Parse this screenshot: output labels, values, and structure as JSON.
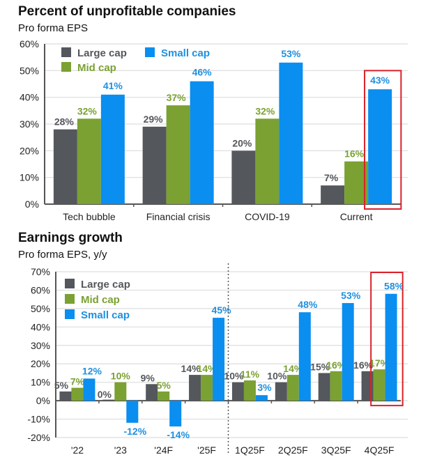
{
  "colors": {
    "large_cap": "#54575c",
    "mid_cap": "#7aa132",
    "small_cap": "#0a8ef0",
    "highlight_box": "#d9222a",
    "axis": "#555555",
    "grid": "#dddddd",
    "divider": "#555555",
    "large_label": "#54575c",
    "mid_label": "#7aa132",
    "small_label": "#1e90e0"
  },
  "chart_data": [
    {
      "type": "bar",
      "title": "Percent of unprofitable companies",
      "subtitle": "Pro forma EPS",
      "xlabel": "",
      "ylabel": "",
      "categories": [
        "Tech bubble",
        "Financial crisis",
        "COVID-19",
        "Current"
      ],
      "series": [
        {
          "name": "Large cap",
          "values": [
            28,
            29,
            20,
            7
          ]
        },
        {
          "name": "Mid cap",
          "values": [
            32,
            37,
            32,
            16
          ]
        },
        {
          "name": "Small cap",
          "values": [
            41,
            46,
            53,
            43
          ]
        }
      ],
      "data_labels": {
        "Large cap": [
          "28%",
          "29%",
          "20%",
          "7%"
        ],
        "Mid cap": [
          "32%",
          "37%",
          "32%",
          "16%"
        ],
        "Small cap": [
          "41%",
          "46%",
          "53%",
          "43%"
        ]
      },
      "ylim": [
        0,
        60
      ],
      "yticks": [
        "0%",
        "10%",
        "20%",
        "30%",
        "40%",
        "50%",
        "60%"
      ],
      "grid": true,
      "legend": {
        "placement": "top-left",
        "items": [
          "Large cap",
          "Mid cap",
          "Small cap"
        ]
      },
      "highlight": {
        "category": "Current",
        "series": "Small cap"
      }
    },
    {
      "type": "bar",
      "title": "Earnings growth",
      "subtitle": "Pro forma EPS, y/y",
      "xlabel": "",
      "ylabel": "",
      "categories": [
        "'22",
        "'23",
        "'24F",
        "'25F",
        "1Q25F",
        "2Q25F",
        "3Q25F",
        "4Q25F"
      ],
      "series": [
        {
          "name": "Large cap",
          "values": [
            5,
            0,
            9,
            14,
            10,
            10,
            15,
            16
          ]
        },
        {
          "name": "Mid cap",
          "values": [
            7,
            10,
            5,
            14,
            11,
            14,
            16,
            17
          ]
        },
        {
          "name": "Small cap",
          "values": [
            12,
            -12,
            -14,
            45,
            3,
            48,
            53,
            58
          ]
        }
      ],
      "data_labels": {
        "Large cap": [
          "5%",
          "0%",
          "9%",
          "14%",
          "10%",
          "10%",
          "15%",
          "16%"
        ],
        "Mid cap": [
          "7%",
          "10%",
          "5%",
          "14%",
          "11%",
          "14%",
          "16%",
          "17%"
        ],
        "Small cap": [
          "12%",
          "-12%",
          "-14%",
          "45%",
          "3%",
          "48%",
          "53%",
          "58%"
        ]
      },
      "ylim": [
        -20,
        70
      ],
      "yticks": [
        "-20%",
        "-10%",
        "0%",
        "10%",
        "20%",
        "30%",
        "40%",
        "50%",
        "60%",
        "70%"
      ],
      "grid": true,
      "legend": {
        "placement": "top-left",
        "items": [
          "Large cap",
          "Mid cap",
          "Small cap"
        ]
      },
      "divider_after_category": "'25F",
      "highlight": {
        "category": "4Q25F",
        "series": "Mid cap and Small cap"
      }
    }
  ]
}
